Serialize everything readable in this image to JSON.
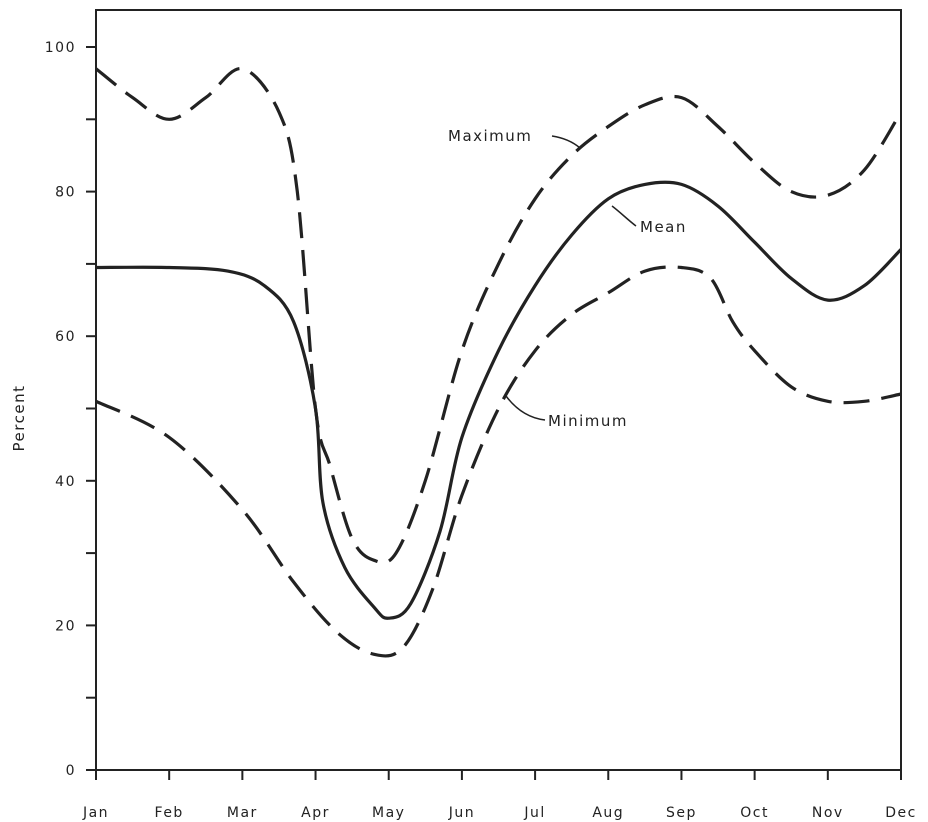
{
  "chart_data": {
    "type": "line",
    "ylabel": "Percent",
    "xlabel": "",
    "title": "",
    "ylim": [
      0,
      100
    ],
    "yticks": [
      0,
      20,
      40,
      60,
      80,
      100
    ],
    "ytick_labels": [
      "0",
      "20",
      "40",
      "60",
      "80",
      "100"
    ],
    "x_categories": [
      "Jan",
      "Feb",
      "Mar",
      "Apr",
      "May",
      "Jun",
      "Jul",
      "Aug",
      "Sep",
      "Oct",
      "Nov",
      "Dec"
    ],
    "grid": false,
    "legend": "none (series labeled inline)",
    "series": [
      {
        "name": "Maximum",
        "style": "dashed",
        "color": "#222222",
        "points": [
          [
            0,
            97
          ],
          [
            0.5,
            93
          ],
          [
            1,
            90
          ],
          [
            1.5,
            93
          ],
          [
            2,
            97
          ],
          [
            2.5,
            91
          ],
          [
            2.75,
            80
          ],
          [
            3,
            50
          ],
          [
            3.2,
            42
          ],
          [
            3.5,
            32
          ],
          [
            3.8,
            29
          ],
          [
            4.1,
            30
          ],
          [
            4.5,
            40
          ],
          [
            5,
            58
          ],
          [
            5.5,
            70
          ],
          [
            6,
            79
          ],
          [
            6.5,
            85
          ],
          [
            7,
            89
          ],
          [
            7.5,
            92
          ],
          [
            8,
            93
          ],
          [
            8.5,
            89
          ],
          [
            9,
            84
          ],
          [
            9.5,
            80
          ],
          [
            10,
            79.5
          ],
          [
            10.5,
            83
          ],
          [
            11,
            91
          ]
        ]
      },
      {
        "name": "Mean",
        "style": "solid",
        "color": "#222222",
        "points": [
          [
            0,
            69.5
          ],
          [
            1,
            69.5
          ],
          [
            1.8,
            69
          ],
          [
            2.3,
            67
          ],
          [
            2.7,
            62
          ],
          [
            3,
            50
          ],
          [
            3.1,
            37
          ],
          [
            3.4,
            28
          ],
          [
            3.8,
            22.5
          ],
          [
            4,
            21
          ],
          [
            4.3,
            23
          ],
          [
            4.7,
            33
          ],
          [
            5,
            46
          ],
          [
            5.5,
            58
          ],
          [
            6,
            67
          ],
          [
            6.5,
            74
          ],
          [
            7,
            79
          ],
          [
            7.5,
            81
          ],
          [
            8,
            81
          ],
          [
            8.5,
            78
          ],
          [
            9,
            73
          ],
          [
            9.5,
            68
          ],
          [
            10,
            65
          ],
          [
            10.5,
            67
          ],
          [
            11,
            72
          ]
        ]
      },
      {
        "name": "Minimum",
        "style": "dashed",
        "color": "#222222",
        "points": [
          [
            0,
            51
          ],
          [
            1,
            46
          ],
          [
            2,
            36
          ],
          [
            2.7,
            26
          ],
          [
            3.3,
            19
          ],
          [
            3.8,
            16
          ],
          [
            4.2,
            17
          ],
          [
            4.6,
            25
          ],
          [
            5,
            38
          ],
          [
            5.5,
            50
          ],
          [
            6,
            58
          ],
          [
            6.5,
            63
          ],
          [
            7,
            66
          ],
          [
            7.5,
            69
          ],
          [
            8,
            69.5
          ],
          [
            8.4,
            68
          ],
          [
            8.7,
            62
          ],
          [
            9,
            58
          ],
          [
            9.5,
            53
          ],
          [
            10,
            51
          ],
          [
            10.5,
            51
          ],
          [
            11,
            52
          ]
        ]
      }
    ],
    "annotations": [
      {
        "text": "Maximum",
        "series": "Maximum"
      },
      {
        "text": "Mean",
        "series": "Mean"
      },
      {
        "text": "Minimum",
        "series": "Minimum"
      }
    ]
  }
}
